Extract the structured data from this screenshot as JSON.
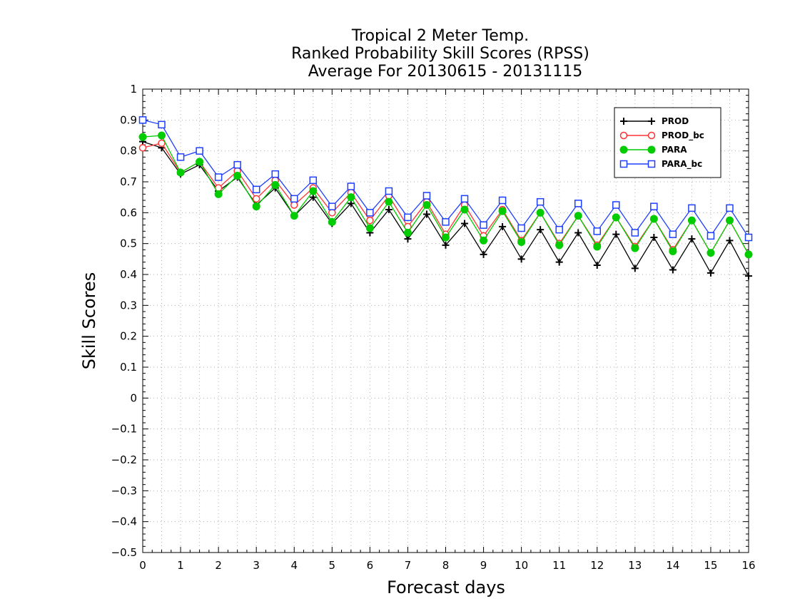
{
  "chart_data": {
    "type": "line",
    "title": [
      "Tropical 2 Meter Temp.",
      "Ranked Probability Skill Scores (RPSS)",
      "Average For 20130615 - 20131115"
    ],
    "xlabel": "Forecast days",
    "ylabel": "Skill Scores",
    "xlim": [
      0,
      16
    ],
    "ylim": [
      -0.5,
      1
    ],
    "xticks": [
      0,
      1,
      2,
      3,
      4,
      5,
      6,
      7,
      8,
      9,
      10,
      11,
      12,
      13,
      14,
      15,
      16
    ],
    "xtick_labels": [
      "0",
      "1",
      "2",
      "3",
      "4",
      "5",
      "6",
      "7",
      "8",
      "9",
      "10",
      "11",
      "12",
      "13",
      "14",
      "15",
      "16"
    ],
    "yticks": [
      -0.5,
      -0.4,
      -0.3,
      -0.2,
      -0.1,
      0,
      0.1,
      0.2,
      0.3,
      0.4,
      0.5,
      0.6,
      0.7,
      0.8,
      0.9,
      1
    ],
    "ytick_labels": [
      "−0.5",
      "−0.4",
      "−0.3",
      "−0.2",
      "−0.1",
      "0",
      "0.1",
      "0.2",
      "0.3",
      "0.4",
      "0.5",
      "0.6",
      "0.7",
      "0.8",
      "0.9",
      "1"
    ],
    "grid": true,
    "legend_position": "top-right",
    "x": [
      0,
      0.5,
      1,
      1.5,
      2,
      2.5,
      3,
      3.5,
      4,
      4.5,
      5,
      5.5,
      6,
      6.5,
      7,
      7.5,
      8,
      8.5,
      9,
      9.5,
      10,
      10.5,
      11,
      11.5,
      12,
      12.5,
      13,
      13.5,
      14,
      14.5,
      15,
      15.5,
      16
    ],
    "series": [
      {
        "name": "PROD",
        "color": "#000000",
        "marker": "plus",
        "values": [
          0.83,
          0.81,
          0.725,
          0.755,
          0.67,
          0.715,
          0.625,
          0.68,
          0.59,
          0.65,
          0.565,
          0.63,
          0.535,
          0.61,
          0.515,
          0.595,
          0.495,
          0.565,
          0.465,
          0.555,
          0.45,
          0.545,
          0.44,
          0.535,
          0.43,
          0.53,
          0.42,
          0.52,
          0.415,
          0.515,
          0.405,
          0.51,
          0.395
        ]
      },
      {
        "name": "PROD_bc",
        "color": "#ff3333",
        "marker": "open-circle",
        "values": [
          0.81,
          0.825,
          0.73,
          0.765,
          0.68,
          0.735,
          0.645,
          0.705,
          0.625,
          0.68,
          0.6,
          0.665,
          0.575,
          0.655,
          0.555,
          0.635,
          0.53,
          0.625,
          0.525,
          0.61,
          0.51,
          0.6,
          0.5,
          0.59,
          0.495,
          0.585,
          0.49,
          0.58,
          0.48,
          0.575,
          0.47,
          0.575,
          0.465
        ]
      },
      {
        "name": "PARA",
        "color": "#00cc00",
        "marker": "filled-circle",
        "values": [
          0.845,
          0.85,
          0.73,
          0.765,
          0.66,
          0.72,
          0.62,
          0.69,
          0.59,
          0.67,
          0.57,
          0.65,
          0.55,
          0.635,
          0.535,
          0.625,
          0.52,
          0.61,
          0.51,
          0.605,
          0.505,
          0.6,
          0.495,
          0.59,
          0.49,
          0.585,
          0.485,
          0.58,
          0.475,
          0.575,
          0.47,
          0.575,
          0.465
        ]
      },
      {
        "name": "PARA_bc",
        "color": "#1f3fff",
        "marker": "open-square",
        "values": [
          0.9,
          0.885,
          0.78,
          0.8,
          0.715,
          0.755,
          0.675,
          0.725,
          0.645,
          0.705,
          0.62,
          0.685,
          0.6,
          0.67,
          0.585,
          0.655,
          0.57,
          0.645,
          0.56,
          0.64,
          0.55,
          0.635,
          0.545,
          0.63,
          0.54,
          0.625,
          0.535,
          0.62,
          0.53,
          0.615,
          0.525,
          0.615,
          0.52
        ]
      }
    ]
  }
}
